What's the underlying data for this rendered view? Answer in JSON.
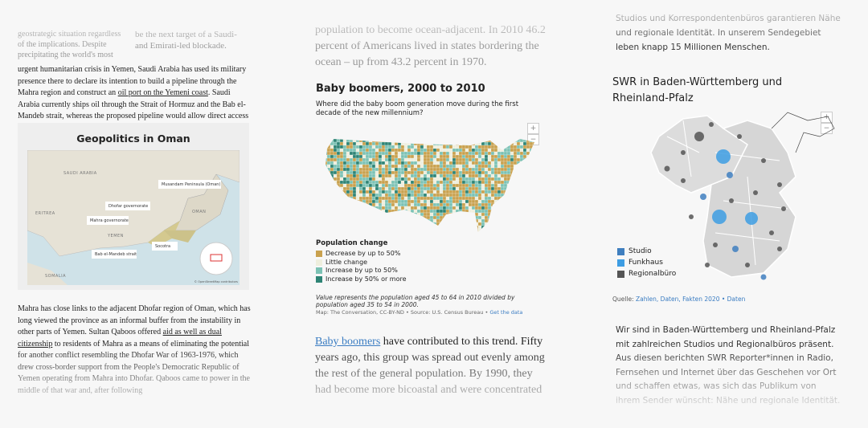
{
  "panels": [
    {
      "top_left": "geostrategic situation regardless of the implications. Despite precipitating the world's most",
      "top_right": "be the next target of a Saudi- and Emirati-led blockade.",
      "intro": [
        "urgent humanitarian crisis in Yemen, Saudi Arabia has used its military presence there to declare its intention to build a pipeline through the Mahra region and construct an ",
        "oil port on the Yemeni coast",
        ". Saudi Arabia currently ships oil through the Strait of Hormuz and the Bab el-Mandeb strait, whereas the proposed pipeline would allow direct access to the Indian Ocean."
      ],
      "figure": {
        "title": "Geopolitics in Oman",
        "regions": [
          "SAUDI ARABIA",
          "OMAN",
          "YEMEN",
          "ERITREA",
          "SOMALIA"
        ],
        "callouts": [
          "Musandam Peninsula (Oman)",
          "Dhofar governorate",
          "Mahra governorate",
          "Socotra",
          "Bab el-Mandeb strait"
        ],
        "credit": "© OpenStreetMap contributors"
      },
      "body": [
        "Mahra has close links to the adjacent Dhofar region of Oman, which has long viewed the province as an informal buffer from the instability in other parts of Yemen. Sultan Qaboos offered ",
        "aid as well as dual citizenship",
        " to residents of Mahra as a means of eliminating the potential for another conflict resembling the Dhofar War of 1963-1976, which drew cross-border support from the People's Democratic Republic of Yemen operating from Mahra into Dhofar. Qaboos came to power in the middle of that war and, after following"
      ]
    },
    {
      "top": "population to become ocean-adjacent. In 2010 46.2 percent of Americans lived in states bordering the ocean – up from 43.2 percent in 1970.",
      "title": "Baby boomers, 2000 to 2010",
      "subtitle": "Where did the baby boom generation move during the first decade of the new millennium?",
      "zoom": [
        "+",
        "−"
      ],
      "legend": {
        "title": "Population change",
        "items": [
          {
            "label": "Decrease by up to 50%",
            "color": "#c9a14e"
          },
          {
            "label": "Little change",
            "color": "#eeeedd"
          },
          {
            "label": "Increase by up to 50%",
            "color": "#7cc2b4"
          },
          {
            "label": "Increase by 50% or more",
            "color": "#2e8475"
          }
        ]
      },
      "note": "Value represents the population aged 45 to 64 in 2010 divided by population aged 35 to 54 in 2000.",
      "source": "Map: The Conversation, CC-BY-ND • Source: U.S. Census Bureau • ",
      "source_link": "Get the data",
      "body": [
        "Baby boomers",
        " have contributed to this trend. Fifty years ago, this group was spread out evenly among the rest of the general population. By 1990, they had become more bicoastal and were concentrated"
      ]
    },
    {
      "top": "Studios und Korrespondentenbüros garantieren Nähe und regionale Identität. In unserem Sendegebiet leben knapp 15 Millionen Menschen.",
      "title": "SWR in Baden-Württemberg und Rheinland-Pfalz",
      "zoom": [
        "+",
        "−"
      ],
      "legend": [
        {
          "label": "Studio",
          "color": "#3f7fbf"
        },
        {
          "label": "Funkhaus",
          "color": "#3d9de3"
        },
        {
          "label": "Regionalbüro",
          "color": "#555555"
        }
      ],
      "source": "Quelle: ",
      "source_link": "Zahlen, Daten, Fakten 2020 • Daten",
      "body": "Wir sind in Baden-Württemberg und Rheinland-Pfalz mit zahlreichen Studios und Regionalbüros präsent. Aus diesen berichten SWR Reporter*innen in Radio, Fernsehen und Internet über das Geschehen vor Ort und schaffen etwas, was sich das Publikum von ihrem Sender wünscht: Nähe und regionale Identität."
    }
  ]
}
